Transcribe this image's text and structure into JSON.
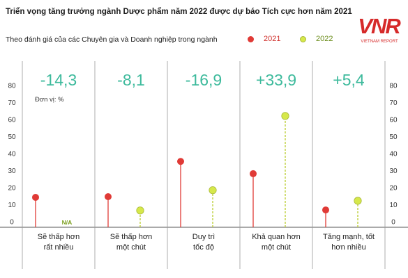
{
  "header": {
    "title": "Triển vọng tăng trưởng ngành Dược phẩm năm 2022 được dự báo Tích cực hơn năm 2021",
    "subtitle": "Theo đánh giá của các Chuyên gia và Doanh nghiệp trong ngành"
  },
  "legend": {
    "y2021": "2021",
    "y2022": "2022"
  },
  "logo": {
    "text": "VNR",
    "tagline": "VIETNAM REPORT"
  },
  "colors": {
    "y2021": "#e03a36",
    "y2022": "#d6e84a",
    "change": "#3dba9c",
    "axis": "#444444"
  },
  "chart_data": {
    "type": "lollipop",
    "unit_label": "Đơn vị: %",
    "ylim": [
      0,
      80
    ],
    "yticks": [
      0,
      10,
      20,
      30,
      40,
      50,
      60,
      70,
      80
    ],
    "categories": [
      "Sẽ thấp hơn rất nhiều",
      "Sẽ thấp hơn một chút",
      "Duy trì tốc độ",
      "Khả quan hơn một chút",
      "Tăng mạnh, tốt hơn nhiều"
    ],
    "category_lines": [
      [
        "Sẽ thấp hơn",
        "rất nhiều"
      ],
      [
        "Sẽ thấp hơn",
        "một chút"
      ],
      [
        "Duy trì",
        "tốc độ"
      ],
      [
        "Khả quan hơn",
        "một chút"
      ],
      [
        "Tăng mạnh, tốt",
        "hơn nhiều"
      ]
    ],
    "changes": [
      "-14,3",
      "-8,1",
      "-16,9",
      "+33,9",
      "+5,4"
    ],
    "series": [
      {
        "name": "2021",
        "values": [
          14.3,
          14.7,
          35.4,
          28.2,
          6.9
        ]
      },
      {
        "name": "2022",
        "values": [
          null,
          6.6,
          18.5,
          62.1,
          12.3
        ]
      }
    ],
    "na_label": "N/A"
  }
}
